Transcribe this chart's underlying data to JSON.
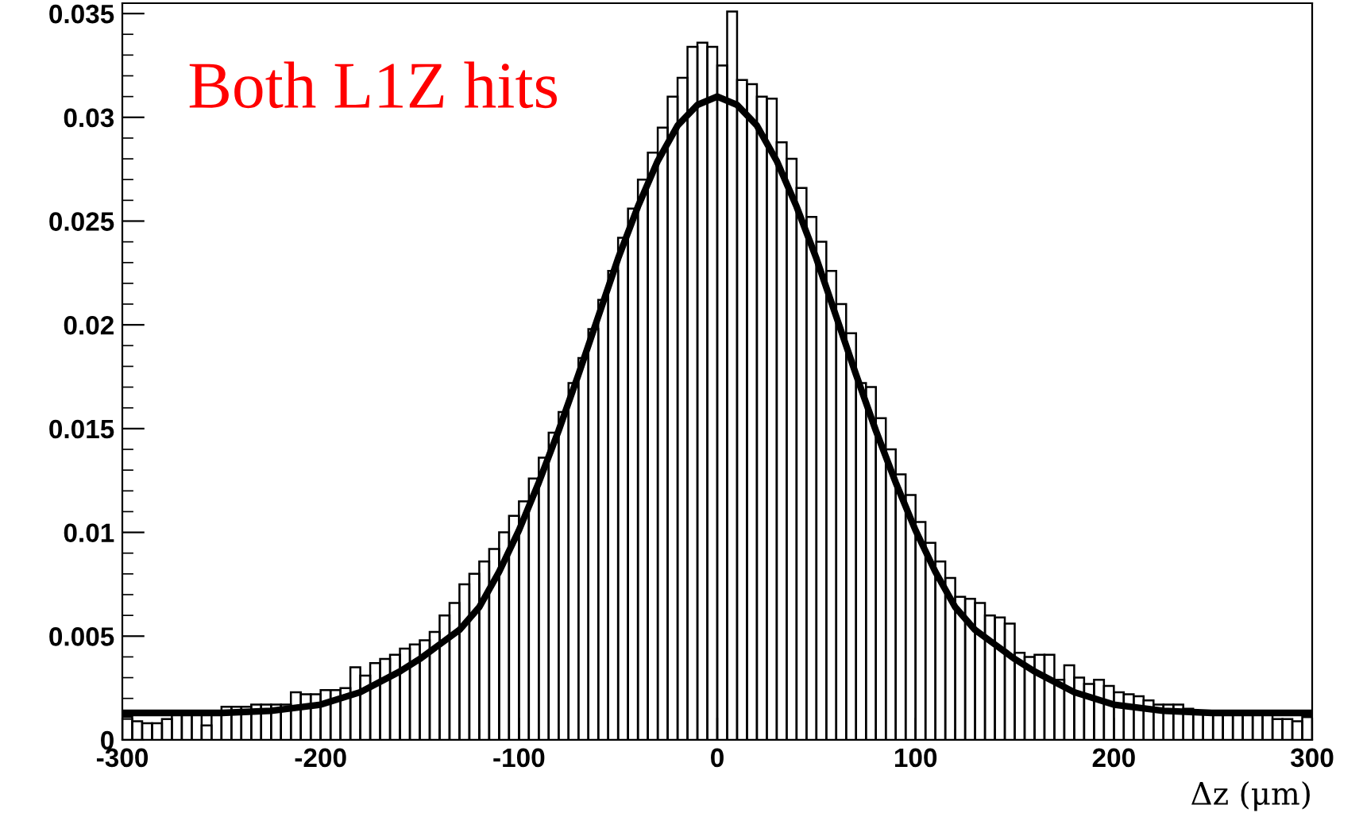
{
  "chart_data": {
    "type": "histogram",
    "xlabel": "Δz (μm)",
    "annotations": [
      "Both L1Z hits"
    ],
    "xlim": [
      -300,
      300
    ],
    "xticks": [
      -300,
      -200,
      -100,
      0,
      100,
      200,
      300
    ],
    "ylim": [
      0,
      0.0355
    ],
    "yticks": [
      0,
      0.005,
      0.01,
      0.015,
      0.02,
      0.025,
      0.03,
      0.035
    ],
    "grid": false,
    "legend": false,
    "color": "#000000",
    "bins": [
      -300,
      -295,
      -290,
      -285,
      -280,
      -275,
      -270,
      -265,
      -260,
      -255,
      -250,
      -245,
      -240,
      -235,
      -230,
      -225,
      -220,
      -215,
      -210,
      -205,
      -200,
      -195,
      -190,
      -185,
      -180,
      -175,
      -170,
      -165,
      -160,
      -155,
      -150,
      -145,
      -140,
      -135,
      -130,
      -125,
      -120,
      -115,
      -110,
      -105,
      -100,
      -95,
      -90,
      -85,
      -80,
      -75,
      -70,
      -65,
      -60,
      -55,
      -50,
      -45,
      -40,
      -35,
      -30,
      -25,
      -20,
      -15,
      -10,
      -5,
      0,
      5,
      10,
      15,
      20,
      25,
      30,
      35,
      40,
      45,
      50,
      55,
      60,
      65,
      70,
      75,
      80,
      85,
      90,
      95,
      100,
      105,
      110,
      115,
      120,
      125,
      130,
      135,
      140,
      145,
      150,
      155,
      160,
      165,
      170,
      175,
      180,
      185,
      190,
      195,
      200,
      205,
      210,
      215,
      220,
      225,
      230,
      235,
      240,
      245,
      250,
      255,
      260,
      265,
      270,
      275,
      280,
      285,
      290,
      295,
      300
    ],
    "values": [
      0.0011,
      0.0009,
      0.0008,
      0.0008,
      0.001,
      0.0014,
      0.0014,
      0.0013,
      0.0007,
      0.0014,
      0.0016,
      0.0016,
      0.0016,
      0.0017,
      0.0017,
      0.0017,
      0.0017,
      0.0023,
      0.0022,
      0.0022,
      0.0024,
      0.0024,
      0.0025,
      0.0035,
      0.0031,
      0.0037,
      0.0039,
      0.0041,
      0.0044,
      0.0046,
      0.0048,
      0.0052,
      0.006,
      0.0066,
      0.0075,
      0.008,
      0.0086,
      0.0092,
      0.01,
      0.0108,
      0.0115,
      0.0126,
      0.0136,
      0.0148,
      0.0158,
      0.0172,
      0.0184,
      0.0198,
      0.0212,
      0.0226,
      0.0242,
      0.0256,
      0.027,
      0.0283,
      0.0295,
      0.031,
      0.0319,
      0.0334,
      0.0336,
      0.0334,
      0.0325,
      0.0351,
      0.0318,
      0.0316,
      0.031,
      0.0309,
      0.0288,
      0.028,
      0.0266,
      0.0252,
      0.024,
      0.0226,
      0.021,
      0.0196,
      0.0172,
      0.017,
      0.0155,
      0.014,
      0.0128,
      0.0118,
      0.0105,
      0.0095,
      0.0086,
      0.0078,
      0.0069,
      0.0068,
      0.0066,
      0.006,
      0.0059,
      0.0056,
      0.0042,
      0.004,
      0.0041,
      0.0041,
      0.0029,
      0.0036,
      0.003,
      0.0027,
      0.0029,
      0.0026,
      0.0023,
      0.0022,
      0.0021,
      0.0019,
      0.0017,
      0.0017,
      0.0017,
      0.0015,
      0.0014,
      0.0014,
      0.0014,
      0.0014,
      0.0013,
      0.0013,
      0.0013,
      0.0013,
      0.001,
      0.001,
      0.0009,
      0.0011
    ],
    "series": [
      {
        "type": "line",
        "color": "#000000",
        "x": [
          -300,
          -275,
          -250,
          -225,
          -200,
          -180,
          -160,
          -150,
          -140,
          -130,
          -120,
          -110,
          -100,
          -90,
          -80,
          -70,
          -60,
          -50,
          -40,
          -30,
          -20,
          -10,
          0,
          10,
          20,
          30,
          40,
          50,
          60,
          70,
          80,
          90,
          100,
          110,
          120,
          130,
          140,
          150,
          160,
          180,
          200,
          225,
          250,
          275,
          300
        ],
        "values": [
          0.0013,
          0.0013,
          0.0013,
          0.0014,
          0.0017,
          0.0023,
          0.0033,
          0.0039,
          0.0046,
          0.0053,
          0.0064,
          0.0081,
          0.0101,
          0.0124,
          0.0149,
          0.0176,
          0.0204,
          0.0232,
          0.0257,
          0.0279,
          0.0296,
          0.0306,
          0.031,
          0.0306,
          0.0296,
          0.0279,
          0.0257,
          0.0232,
          0.0204,
          0.0176,
          0.0149,
          0.0124,
          0.0101,
          0.0081,
          0.0064,
          0.0053,
          0.0046,
          0.0039,
          0.0033,
          0.0023,
          0.0017,
          0.0014,
          0.0013,
          0.0013,
          0.0013
        ]
      }
    ]
  }
}
